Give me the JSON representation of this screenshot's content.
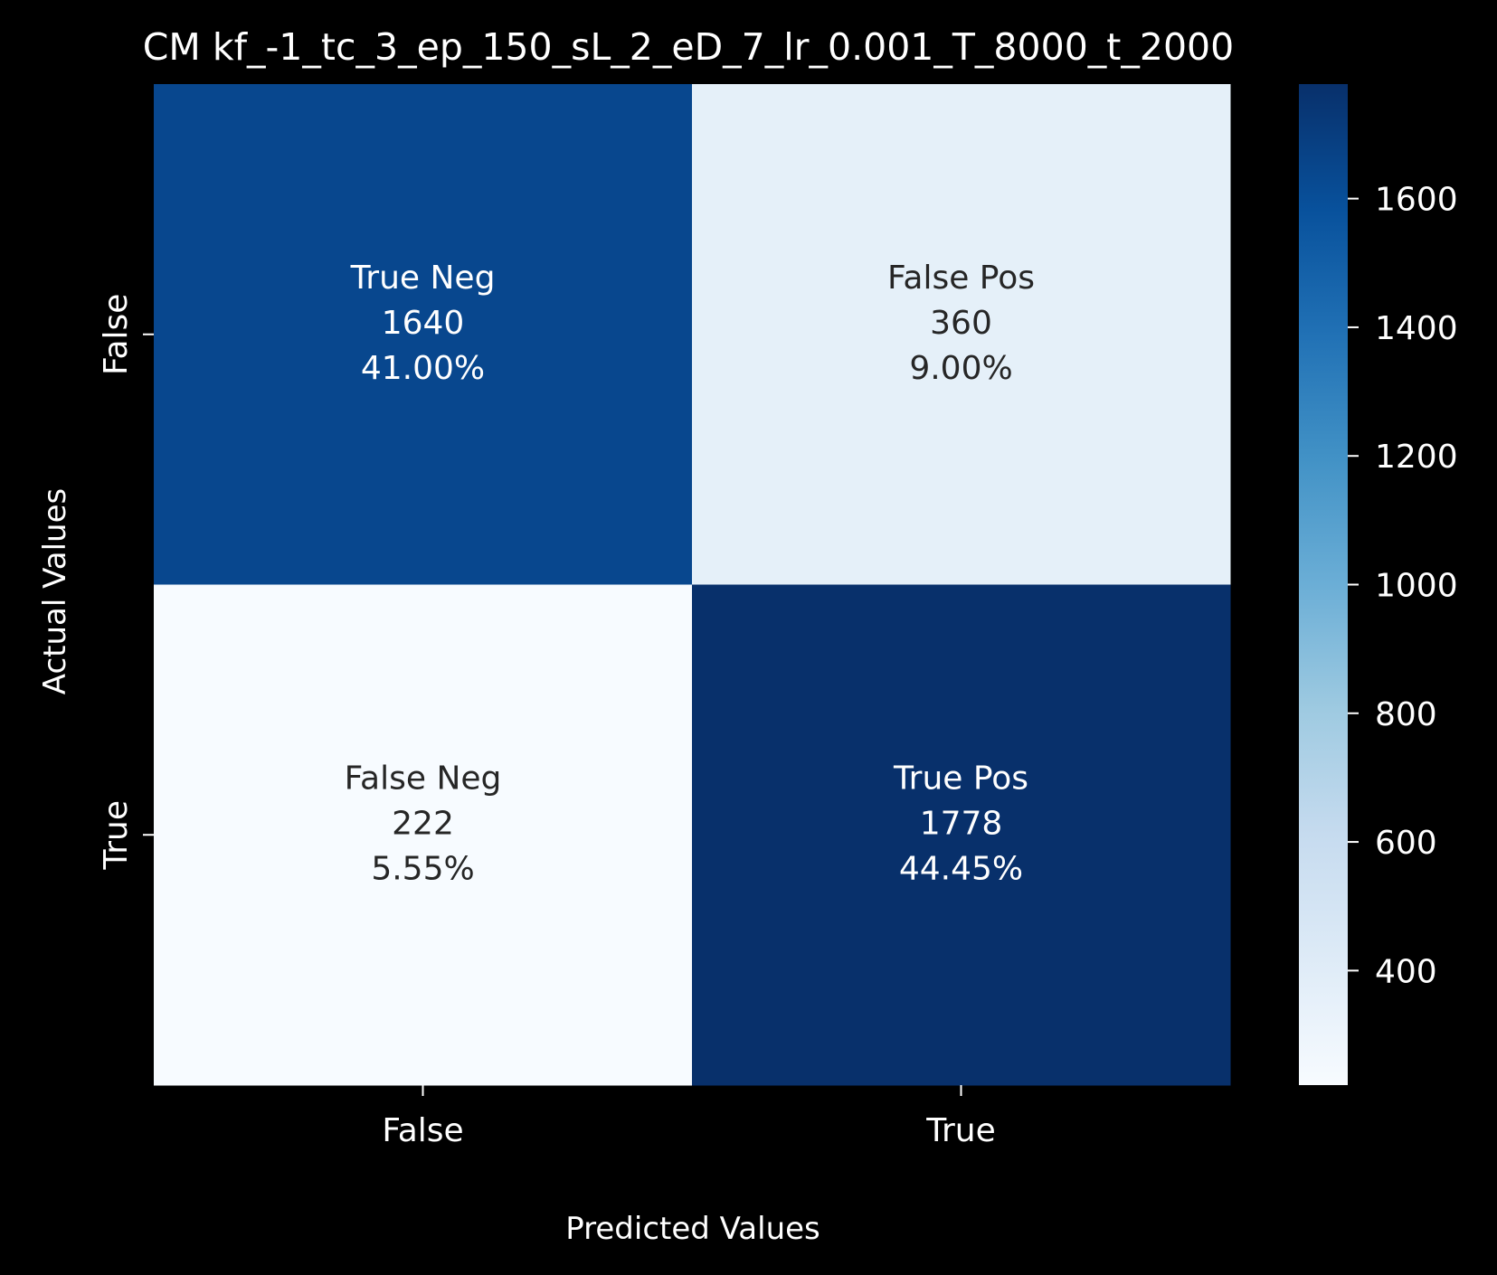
{
  "chart_data": {
    "type": "heatmap",
    "title": "CM kf_-1_tc_3_ep_150_sL_2_eD_7_lr_0.001_T_8000_t_2000",
    "xlabel": "Predicted Values",
    "ylabel": "Actual Values",
    "x_categories": [
      "False",
      "True"
    ],
    "y_categories": [
      "False",
      "True"
    ],
    "cells": [
      {
        "row": 0,
        "col": 0,
        "label": "True Neg",
        "value": 1640,
        "percent": "41.00%",
        "value_text": "1640"
      },
      {
        "row": 0,
        "col": 1,
        "label": "False Pos",
        "value": 360,
        "percent": "9.00%",
        "value_text": "360"
      },
      {
        "row": 1,
        "col": 0,
        "label": "False Neg",
        "value": 222,
        "percent": "5.55%",
        "value_text": "222"
      },
      {
        "row": 1,
        "col": 1,
        "label": "True Pos",
        "value": 1778,
        "percent": "44.45%",
        "value_text": "1778"
      }
    ],
    "colorbar": {
      "colormap": "Blues",
      "vmin": 222,
      "vmax": 1778,
      "ticks": [
        400,
        600,
        800,
        1000,
        1200,
        1400,
        1600
      ],
      "tick_labels": [
        "400",
        "600",
        "800",
        "1000",
        "1200",
        "1400",
        "1600"
      ]
    },
    "background": "#000000",
    "text_color": "#ffffff",
    "dark_annotation_color": "#262626"
  }
}
